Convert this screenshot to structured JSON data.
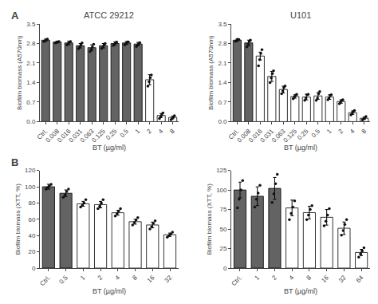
{
  "chart_data": [
    {
      "type": "bar",
      "title": "ATCC 29212",
      "annotations": [
        "A"
      ],
      "x_label": "BT (µg/ml)",
      "y_label": "Biofilm biomass (A570nm)",
      "categories": [
        "Ctrl.",
        "0.008",
        "0.016",
        "0.031",
        "0.063",
        "0.125",
        "0.25",
        "0.5",
        "1",
        "2",
        "4",
        "8"
      ],
      "values": [
        2.92,
        2.85,
        2.82,
        2.72,
        2.65,
        2.72,
        2.8,
        2.82,
        2.78,
        1.5,
        0.22,
        0.15
      ],
      "errors": [
        0.04,
        0.03,
        0.06,
        0.08,
        0.1,
        0.08,
        0.06,
        0.05,
        0.06,
        0.18,
        0.07,
        0.05
      ],
      "colors": [
        "#636363",
        "#636363",
        "#636363",
        "#636363",
        "#636363",
        "#636363",
        "#636363",
        "#636363",
        "#636363",
        "#ffffff",
        "#ffffff",
        "#ffffff"
      ],
      "dots": [
        [
          2.87,
          2.89,
          2.93,
          2.96
        ],
        [
          2.82,
          2.84,
          2.86,
          2.87
        ],
        [
          2.75,
          2.79,
          2.84,
          2.87
        ],
        [
          2.61,
          2.68,
          2.74,
          2.82
        ],
        [
          2.51,
          2.59,
          2.67,
          2.77
        ],
        [
          2.62,
          2.67,
          2.74,
          2.8
        ],
        [
          2.73,
          2.77,
          2.83,
          2.85
        ],
        [
          2.75,
          2.79,
          2.85,
          2.86
        ],
        [
          2.69,
          2.75,
          2.79,
          2.83
        ],
        [
          1.27,
          1.43,
          1.57,
          1.67
        ],
        [
          0.11,
          0.17,
          0.24,
          0.31
        ],
        [
          0.07,
          0.11,
          0.17,
          0.21
        ]
      ],
      "ylim": [
        0,
        3.5
      ],
      "yticks": [
        {
          "value": 0,
          "label": "0.0"
        },
        0.7,
        1.4,
        2.1,
        2.8,
        3.5
      ],
      "grid": false
    },
    {
      "type": "bar",
      "title": "U101",
      "x_label": "BT (µg/ml)",
      "y_label": "Biofilm biomass (A570nm)",
      "categories": [
        "Ctrl.",
        "0.008",
        "0.016",
        "0.031",
        "0.063",
        "0.125",
        "0.25",
        "0.5",
        "1",
        "2",
        "4",
        "8"
      ],
      "values": [
        2.92,
        2.82,
        2.35,
        1.62,
        1.15,
        0.9,
        0.88,
        0.92,
        0.88,
        0.72,
        0.32,
        0.12
      ],
      "errors": [
        0.04,
        0.1,
        0.14,
        0.18,
        0.12,
        0.06,
        0.1,
        0.12,
        0.08,
        0.06,
        0.06,
        0.04
      ],
      "colors": [
        "#636363",
        "#636363",
        "#ffffff",
        "#ffffff",
        "#ffffff",
        "#ffffff",
        "#ffffff",
        "#ffffff",
        "#ffffff",
        "#ffffff",
        "#ffffff",
        "#ffffff"
      ],
      "dots": [
        [
          2.88,
          2.9,
          2.95,
          2.94
        ],
        [
          2.68,
          2.78,
          2.88,
          2.92
        ],
        [
          2.0,
          2.22,
          2.44,
          2.58
        ],
        [
          1.4,
          1.56,
          1.72,
          1.82
        ],
        [
          1.0,
          1.1,
          1.22,
          1.28
        ],
        [
          0.82,
          0.88,
          0.94,
          0.98
        ],
        [
          0.76,
          0.84,
          0.96,
          0.98
        ],
        [
          0.76,
          0.84,
          1.0,
          1.08
        ],
        [
          0.78,
          0.84,
          0.94,
          0.96
        ],
        [
          0.64,
          0.7,
          0.76,
          0.78
        ],
        [
          0.24,
          0.3,
          0.36,
          0.4
        ],
        [
          0.06,
          0.1,
          0.14,
          0.18
        ]
      ],
      "ylim": [
        0,
        3.5
      ],
      "yticks": [
        {
          "value": 0,
          "label": "0.0"
        },
        0.7,
        1.4,
        2.1,
        2.8,
        3.5
      ],
      "grid": false
    },
    {
      "type": "bar",
      "annotations": [
        "B"
      ],
      "x_label": "BT (µg/ml)",
      "y_label": "Biofilm biomass (XTT, %)",
      "categories": [
        "Ctrl.",
        "0.5",
        "1",
        "2",
        "4",
        "8",
        "16",
        "32"
      ],
      "values": [
        100,
        92,
        79,
        78,
        68,
        57,
        53,
        41
      ],
      "errors": [
        3.0,
        4.0,
        3.0,
        4.0,
        3.0,
        3.0,
        3.5,
        2.0
      ],
      "colors": [
        "#636363",
        "#636363",
        "#ffffff",
        "#ffffff",
        "#ffffff",
        "#ffffff",
        "#ffffff",
        "#ffffff"
      ],
      "dots": [
        [
          97,
          99,
          101,
          103
        ],
        [
          87,
          90,
          94,
          97
        ],
        [
          75,
          77,
          80,
          84
        ],
        [
          73,
          76,
          80,
          84
        ],
        [
          64,
          67,
          70,
          73
        ],
        [
          53,
          56,
          59,
          62
        ],
        [
          48,
          51,
          55,
          58
        ],
        [
          38,
          40,
          42,
          44
        ]
      ],
      "ylim": [
        0,
        120
      ],
      "yticks": [
        0,
        20,
        40,
        60,
        80,
        100,
        120
      ],
      "grid": false
    },
    {
      "type": "bar",
      "x_label": "BT (µg/ml)",
      "y_label": "Biofilm biomass (XTT, %)",
      "categories": [
        "Ctrl.",
        "1",
        "2",
        "4",
        "8",
        "16",
        "32",
        "64"
      ],
      "values": [
        100,
        92,
        102,
        77,
        71,
        65,
        51,
        20
      ],
      "errors": [
        10.0,
        12.0,
        14.0,
        10.0,
        8.0,
        10.0,
        8.0,
        4.0
      ],
      "colors": [
        "#636363",
        "#636363",
        "#636363",
        "#ffffff",
        "#ffffff",
        "#ffffff",
        "#ffffff",
        "#ffffff"
      ],
      "dots": [
        [
          77,
          88,
          100,
          112
        ],
        [
          78,
          88,
          96,
          106
        ],
        [
          84,
          95,
          108,
          120
        ],
        [
          62,
          70,
          78,
          86
        ],
        [
          62,
          68,
          75,
          80
        ],
        [
          54,
          60,
          68,
          76
        ],
        [
          42,
          48,
          56,
          62
        ],
        [
          14,
          18,
          22,
          26
        ]
      ],
      "ylim": [
        0,
        125
      ],
      "yticks": [
        0,
        25,
        50,
        75,
        100,
        125
      ],
      "grid": false
    }
  ]
}
